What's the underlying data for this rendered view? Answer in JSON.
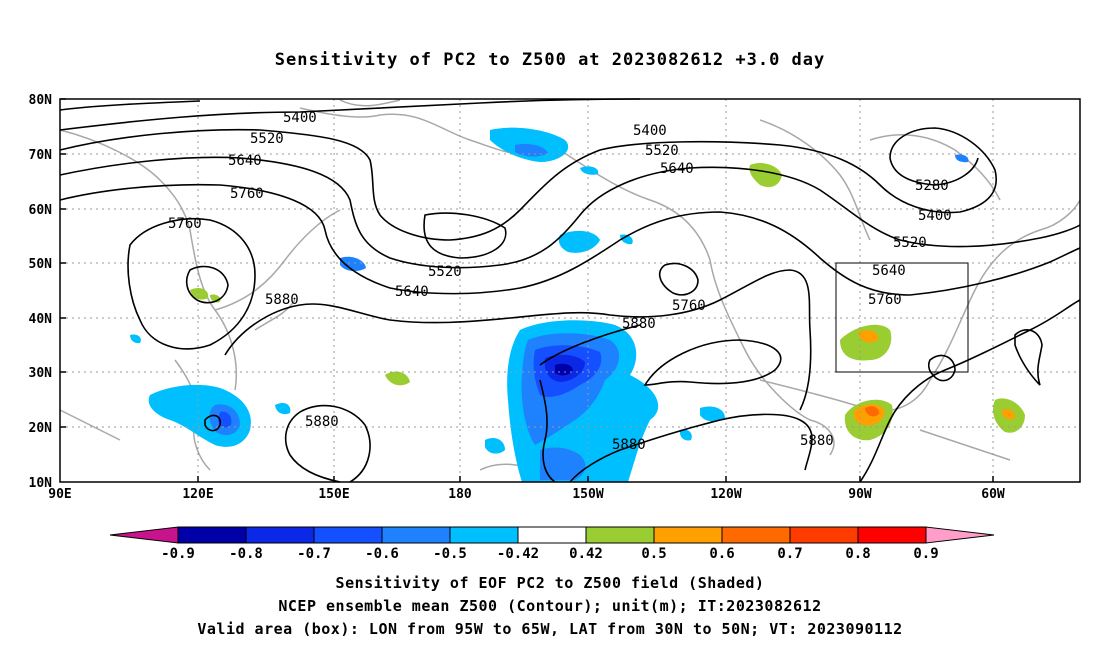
{
  "title": "Sensitivity of PC2 to Z500 at 2023082612 +3.0 day",
  "lat_labels": [
    "80N",
    "70N",
    "60N",
    "50N",
    "40N",
    "30N",
    "20N",
    "10N"
  ],
  "lon_labels": [
    "90E",
    "120E",
    "150E",
    "180",
    "150W",
    "120W",
    "90W",
    "60W"
  ],
  "contour_labels": [
    {
      "text": "5400",
      "id": "c1"
    },
    {
      "text": "5520",
      "id": "c2"
    },
    {
      "text": "5640",
      "id": "c3"
    },
    {
      "text": "5760",
      "id": "c4"
    },
    {
      "text": "5760",
      "id": "c5"
    },
    {
      "text": "5880",
      "id": "c6"
    },
    {
      "text": "5520",
      "id": "c7"
    },
    {
      "text": "5640",
      "id": "c8"
    },
    {
      "text": "5880",
      "id": "c9"
    },
    {
      "text": "5400",
      "id": "c10"
    },
    {
      "text": "5520",
      "id": "c11"
    },
    {
      "text": "5640",
      "id": "c12"
    },
    {
      "text": "5760",
      "id": "c13"
    },
    {
      "text": "5880",
      "id": "c14"
    },
    {
      "text": "5880",
      "id": "c15"
    },
    {
      "text": "5880",
      "id": "c16"
    },
    {
      "text": "5280",
      "id": "c17"
    },
    {
      "text": "5400",
      "id": "c18"
    },
    {
      "text": "5520",
      "id": "c19"
    },
    {
      "text": "5640",
      "id": "c20"
    },
    {
      "text": "5760",
      "id": "c21"
    }
  ],
  "colorbar": {
    "labels": [
      "-0.9",
      "-0.8",
      "-0.7",
      "-0.6",
      "-0.5",
      "-0.42",
      "0.42",
      "0.5",
      "0.6",
      "0.7",
      "0.8",
      "0.9"
    ],
    "colors": [
      "#0000a8",
      "#0a28e6",
      "#1450ff",
      "#1e82ff",
      "#00bfff",
      "#ffffff",
      "#9acd32",
      "#ff9f00",
      "#ff6a00",
      "#ff3c00",
      "#ff0000"
    ],
    "low_end_color": "#c8148c",
    "high_end_color": "#ff9ec8"
  },
  "caption": {
    "line1": "Sensitivity of EOF PC2 to Z500 field (Shaded)",
    "line2": "NCEP ensemble mean Z500 (Contour); unit(m); IT:2023082612",
    "line3": "Valid area (box): LON from 95W to 65W, LAT from 30N to 50N; VT: 2023090112"
  }
}
